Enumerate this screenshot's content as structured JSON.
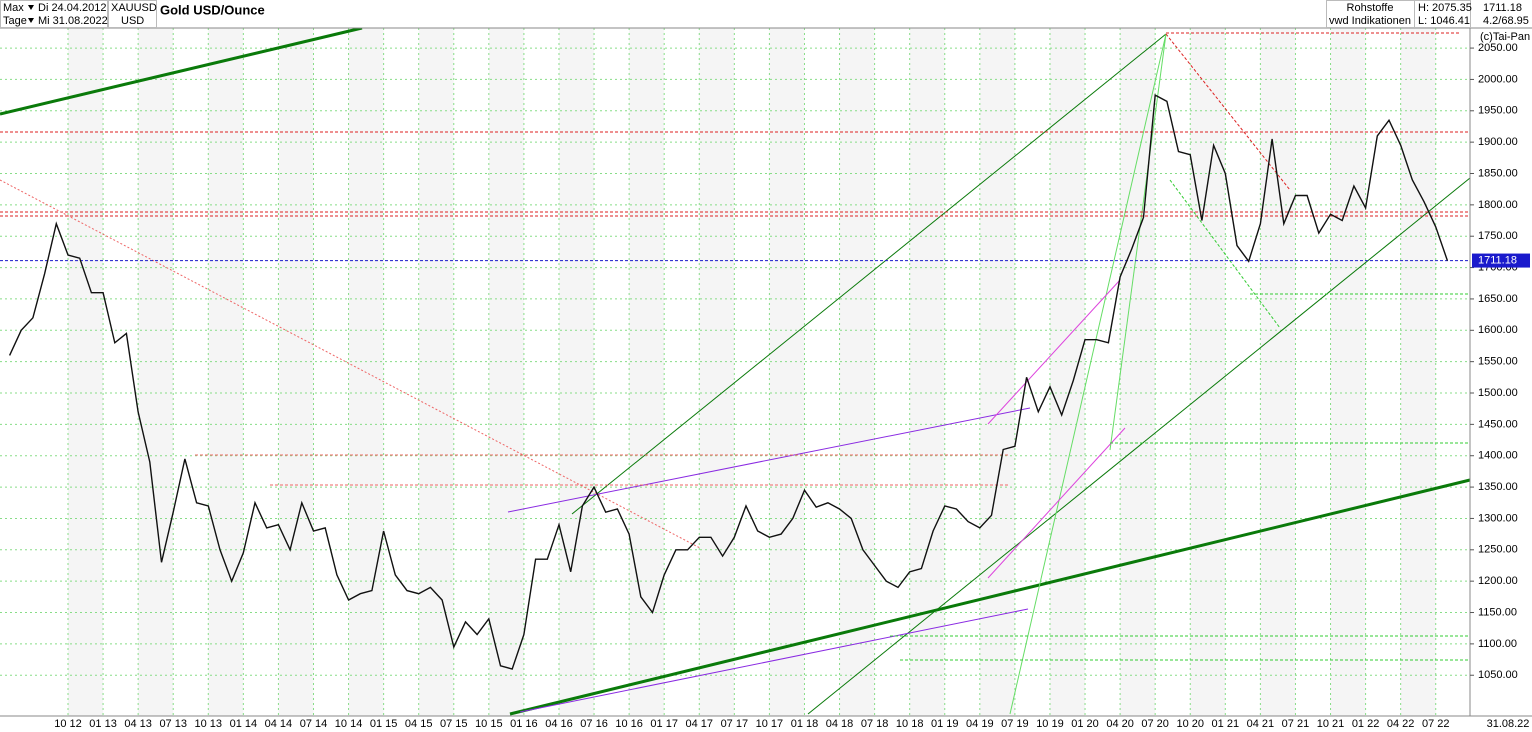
{
  "header": {
    "range": "Max",
    "start_date": "Di 24.04.2012",
    "period": "Tage",
    "end_date": "Mi 31.08.2022",
    "symbol": "XAUUSD",
    "currency": "USD",
    "title": "Gold USD/Ounce",
    "group": "Rohstoffe",
    "source": "vwd Indikationen",
    "high": "H: 2075.35",
    "low": "L: 1046.41",
    "change": "4.2/68.95",
    "copyright": "(c)Tai-Pan"
  },
  "chart_data": {
    "type": "line",
    "title": "Gold USD/Ounce",
    "last_value": 1711.18,
    "x_end_label": "31.08.22",
    "categories": [
      null,
      null,
      null,
      null,
      null,
      "10 12",
      null,
      null,
      "01 13",
      null,
      null,
      "04 13",
      null,
      null,
      "07 13",
      null,
      null,
      "10 13",
      null,
      null,
      "01 14",
      null,
      null,
      "04 14",
      null,
      null,
      "07 14",
      null,
      null,
      "10 14",
      null,
      null,
      "01 15",
      null,
      null,
      "04 15",
      null,
      null,
      "07 15",
      null,
      null,
      "10 15",
      null,
      null,
      "01 16",
      null,
      null,
      "04 16",
      null,
      null,
      "07 16",
      null,
      null,
      "10 16",
      null,
      null,
      "01 17",
      null,
      null,
      "04 17",
      null,
      null,
      "07 17",
      null,
      null,
      "10 17",
      null,
      null,
      "01 18",
      null,
      null,
      "04 18",
      null,
      null,
      "07 18",
      null,
      null,
      "10 18",
      null,
      null,
      "01 19",
      null,
      null,
      "04 19",
      null,
      null,
      "07 19",
      null,
      null,
      "10 19",
      null,
      null,
      "01 20",
      null,
      null,
      "04 20",
      null,
      null,
      "07 20",
      null,
      null,
      "10 20",
      null,
      null,
      "01 21",
      null,
      null,
      "04 21",
      null,
      null,
      "07 21",
      null,
      null,
      "10 21",
      null,
      null,
      "01 22",
      null,
      null,
      "04 22",
      null,
      null,
      "07 22",
      null
    ],
    "series": [
      {
        "name": "XAUUSD",
        "color": "#111111",
        "values": [
          1560,
          1600,
          1620,
          1690,
          1770,
          1720,
          1715,
          1660,
          1660,
          1580,
          1595,
          1470,
          1390,
          1230,
          1310,
          1395,
          1325,
          1320,
          1250,
          1200,
          1245,
          1325,
          1285,
          1290,
          1250,
          1325,
          1280,
          1285,
          1210,
          1170,
          1180,
          1185,
          1280,
          1210,
          1185,
          1180,
          1190,
          1170,
          1095,
          1135,
          1115,
          1140,
          1065,
          1060,
          1115,
          1235,
          1235,
          1290,
          1215,
          1320,
          1350,
          1310,
          1315,
          1275,
          1175,
          1150,
          1210,
          1250,
          1250,
          1270,
          1270,
          1240,
          1270,
          1320,
          1280,
          1270,
          1275,
          1300,
          1345,
          1318,
          1325,
          1315,
          1300,
          1250,
          1225,
          1200,
          1190,
          1215,
          1220,
          1280,
          1320,
          1315,
          1295,
          1285,
          1305,
          1410,
          1415,
          1525,
          1470,
          1510,
          1465,
          1520,
          1585,
          1585,
          1580,
          1685,
          1730,
          1780,
          1975,
          1965,
          1885,
          1880,
          1775,
          1895,
          1850,
          1735,
          1710,
          1770,
          1905,
          1770,
          1815,
          1815,
          1755,
          1785,
          1775,
          1830,
          1795,
          1910,
          1935,
          1895,
          1840,
          1805,
          1765,
          1711.18
        ]
      }
    ],
    "ylim": [
      985,
      2082
    ],
    "yticks": [
      {
        "value": 1050,
        "label": "1050.00"
      },
      {
        "value": 1100,
        "label": "1100.00"
      },
      {
        "value": 1150,
        "label": "1150.00"
      },
      {
        "value": 1200,
        "label": "1200.00"
      },
      {
        "value": 1250,
        "label": "1250.00"
      },
      {
        "value": 1300,
        "label": "1300.00"
      },
      {
        "value": 1350,
        "label": "1350.00"
      },
      {
        "value": 1400,
        "label": "1400.00"
      },
      {
        "value": 1450,
        "label": "1450.00"
      },
      {
        "value": 1500,
        "label": "1500.00"
      },
      {
        "value": 1550,
        "label": "1550.00"
      },
      {
        "value": 1600,
        "label": "1600.00"
      },
      {
        "value": 1650,
        "label": "1650.00"
      },
      {
        "value": 1700,
        "label": "1700.00"
      },
      {
        "value": 1750,
        "label": "1750.00"
      },
      {
        "value": 1800,
        "label": "1800.00"
      },
      {
        "value": 1850,
        "label": "1850.00"
      },
      {
        "value": 1900,
        "label": "1900.00"
      },
      {
        "value": 1950,
        "label": "1950.00"
      },
      {
        "value": 2000,
        "label": "2000.00"
      },
      {
        "value": 2050,
        "label": "2050.00"
      }
    ],
    "grid": true
  }
}
